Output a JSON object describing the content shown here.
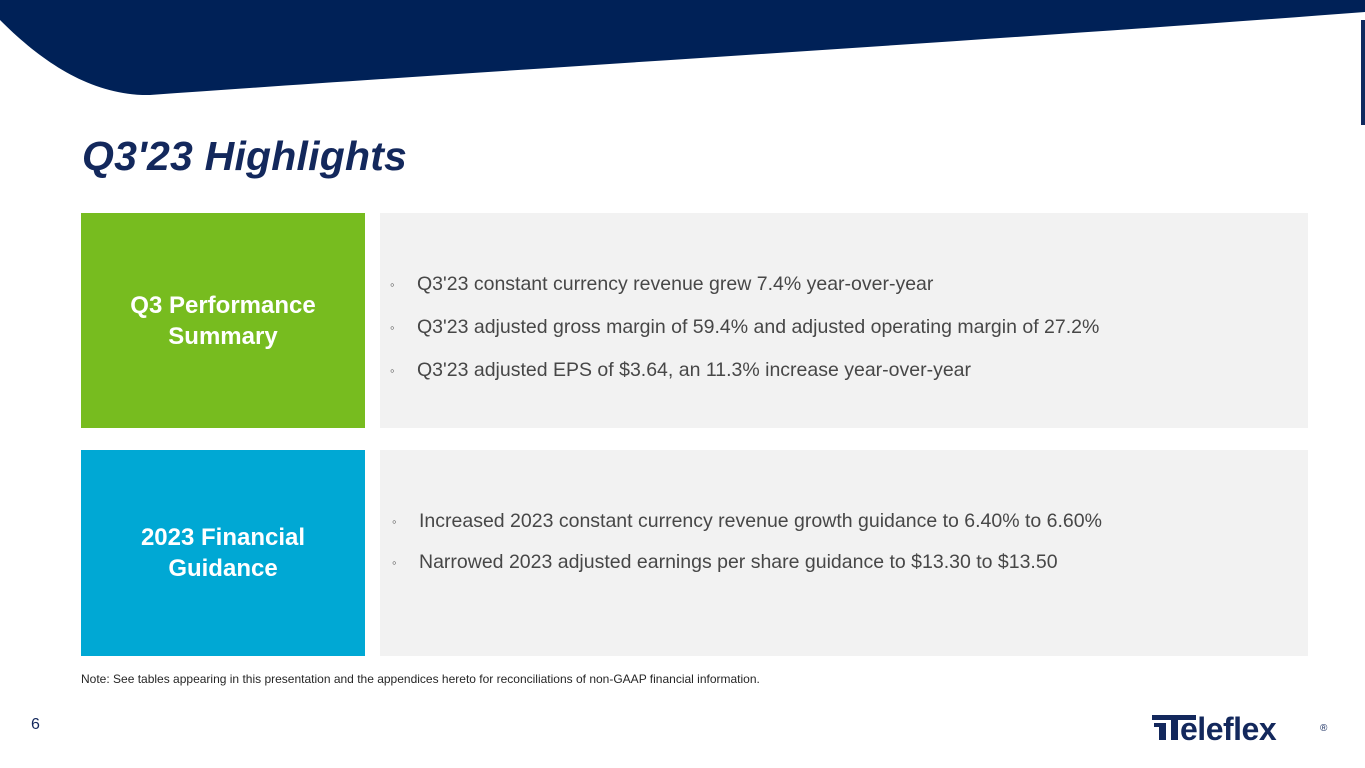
{
  "slide": {
    "title": "Q3'23 Highlights",
    "page_number": "6",
    "note": "Note: See tables appearing in this presentation and the appendices hereto for reconciliations of non-GAAP financial information."
  },
  "sections": [
    {
      "label": "Q3 Performance Summary",
      "bullets": [
        "Q3'23 constant currency revenue grew 7.4% year-over-year",
        "Q3'23 adjusted gross margin of 59.4% and adjusted operating margin of 27.2%",
        "Q3'23 adjusted EPS of $3.64, an 11.3% increase year-over-year"
      ]
    },
    {
      "label": "2023 Financial Guidance",
      "bullets": [
        "Increased 2023 constant currency revenue growth guidance to 6.40% to 6.60%",
        "Narrowed 2023 adjusted earnings per share guidance to $13.30 to $13.50"
      ]
    }
  ],
  "bullet_glyph": "◦",
  "logo": {
    "text": "Teleflex",
    "mark": "®"
  },
  "colors": {
    "navy": "#13285c",
    "banner": "#002157",
    "green": "#77bc1f",
    "blue": "#00a8d4",
    "panel": "#f2f2f2"
  }
}
